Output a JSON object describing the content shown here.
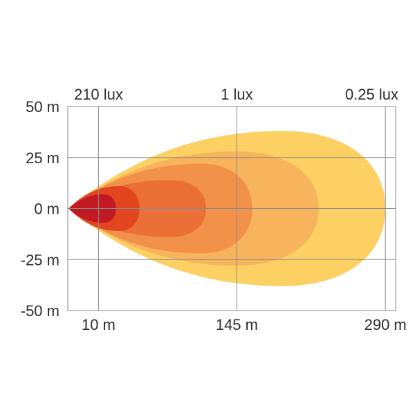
{
  "chart_data": {
    "type": "area",
    "title": "",
    "xlabel": "",
    "ylabel": "",
    "x_ticks": [
      {
        "value": 10,
        "label": "10 m"
      },
      {
        "value": 145,
        "label": "145 m"
      },
      {
        "value": 290,
        "label": "290 m"
      }
    ],
    "y_ticks": [
      {
        "value": 50,
        "label": "50 m"
      },
      {
        "value": 25,
        "label": "25 m"
      },
      {
        "value": 0,
        "label": "0 m"
      },
      {
        "value": -25,
        "label": "-25 m"
      },
      {
        "value": -50,
        "label": "-50 m"
      }
    ],
    "top_labels": [
      {
        "value": 10,
        "label": "210 lux"
      },
      {
        "value": 145,
        "label": "1 lux"
      },
      {
        "value": 290,
        "label": "0.25 lux"
      }
    ],
    "xlim": [
      -20,
      300
    ],
    "ylim": [
      -50,
      50
    ],
    "grid": true,
    "series": [
      {
        "reach": 290,
        "half_width": 38,
        "peak_at": 190,
        "color": "#fcd062"
      },
      {
        "reach": 225,
        "half_width": 28,
        "peak_at": 145,
        "color": "#f7b45c"
      },
      {
        "reach": 160,
        "half_width": 22,
        "peak_at": 110,
        "color": "#f2914a"
      },
      {
        "reach": 115,
        "half_width": 14,
        "peak_at": 80,
        "color": "#ea7038"
      },
      {
        "reach": 50,
        "half_width": 11,
        "peak_at": 30,
        "color": "#e2461f"
      },
      {
        "reach": 27,
        "half_width": 7,
        "peak_at": 15,
        "color": "#c21a22"
      }
    ]
  }
}
